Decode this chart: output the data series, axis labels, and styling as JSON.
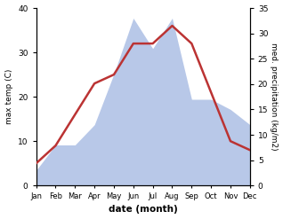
{
  "months": [
    "Jan",
    "Feb",
    "Mar",
    "Apr",
    "May",
    "Jun",
    "Jul",
    "Aug",
    "Sep",
    "Oct",
    "Nov",
    "Dec"
  ],
  "temp": [
    5,
    9,
    16,
    23,
    25,
    32,
    32,
    36,
    32,
    21,
    10,
    8
  ],
  "precip": [
    3,
    8,
    8,
    12,
    22,
    33,
    27,
    33,
    17,
    17,
    15,
    12
  ],
  "temp_color": "#bb3333",
  "precip_color": "#b8c8e8",
  "left_ylim": [
    0,
    40
  ],
  "right_ylim": [
    0,
    35
  ],
  "left_ylabel": "max temp (C)",
  "right_ylabel": "med. precipitation (kg/m2)",
  "xlabel": "date (month)",
  "temp_lw": 1.8,
  "bg_color": "#ffffff",
  "left_yticks": [
    0,
    10,
    20,
    30,
    40
  ],
  "right_yticks": [
    0,
    5,
    10,
    15,
    20,
    25,
    30,
    35
  ]
}
